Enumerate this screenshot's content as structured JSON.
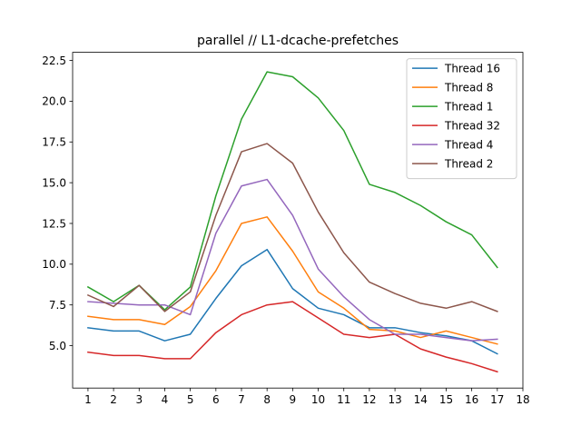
{
  "chart_data": {
    "type": "line",
    "title": "parallel // L1-dcache-prefetches",
    "xlabel": "",
    "ylabel": "",
    "x": [
      1,
      2,
      3,
      4,
      5,
      6,
      7,
      8,
      9,
      10,
      11,
      12,
      13,
      14,
      15,
      16,
      17
    ],
    "xticks": [
      1,
      2,
      3,
      4,
      5,
      6,
      7,
      8,
      9,
      10,
      11,
      12,
      13,
      14,
      15,
      16,
      17,
      18
    ],
    "yticks": [
      5.0,
      7.5,
      10.0,
      12.5,
      15.0,
      17.5,
      20.0,
      22.5
    ],
    "ytick_labels": [
      "5.0",
      "7.5",
      "10.0",
      "12.5",
      "15.0",
      "17.5",
      "20.0",
      "22.5"
    ],
    "xlim": [
      0.4,
      18.0
    ],
    "ylim": [
      2.4,
      23.0
    ],
    "grid": false,
    "legend_position": "top-right",
    "series": [
      {
        "name": "Thread 16",
        "color": "#1f77b4",
        "values": [
          6.1,
          5.9,
          5.9,
          5.3,
          5.7,
          7.9,
          9.9,
          10.9,
          8.5,
          7.3,
          6.9,
          6.1,
          6.1,
          5.8,
          5.6,
          5.3,
          4.5
        ]
      },
      {
        "name": "Thread 8",
        "color": "#ff7f0e",
        "values": [
          6.8,
          6.6,
          6.6,
          6.3,
          7.4,
          9.6,
          12.5,
          12.9,
          10.8,
          8.3,
          7.3,
          6.0,
          5.9,
          5.5,
          5.9,
          5.5,
          5.1
        ]
      },
      {
        "name": "Thread 1",
        "color": "#2ca02c",
        "values": [
          8.6,
          7.7,
          8.7,
          7.2,
          8.6,
          14.2,
          18.9,
          21.8,
          21.5,
          20.2,
          18.2,
          14.9,
          14.4,
          13.6,
          12.6,
          11.8,
          9.8
        ]
      },
      {
        "name": "Thread 32",
        "color": "#d62728",
        "values": [
          4.6,
          4.4,
          4.4,
          4.2,
          4.2,
          5.8,
          6.9,
          7.5,
          7.7,
          6.7,
          5.7,
          5.5,
          5.7,
          4.8,
          4.3,
          3.9,
          3.4
        ]
      },
      {
        "name": "Thread 4",
        "color": "#9467bd",
        "values": [
          7.7,
          7.6,
          7.5,
          7.5,
          6.9,
          11.9,
          14.8,
          15.2,
          13.0,
          9.7,
          8.0,
          6.6,
          5.7,
          5.7,
          5.5,
          5.3,
          5.4
        ]
      },
      {
        "name": "Thread 2",
        "color": "#8c564b",
        "values": [
          8.1,
          7.4,
          8.7,
          7.1,
          8.3,
          13.0,
          16.9,
          17.4,
          16.2,
          13.2,
          10.7,
          8.9,
          8.2,
          7.6,
          7.3,
          7.7,
          7.1
        ]
      }
    ]
  }
}
